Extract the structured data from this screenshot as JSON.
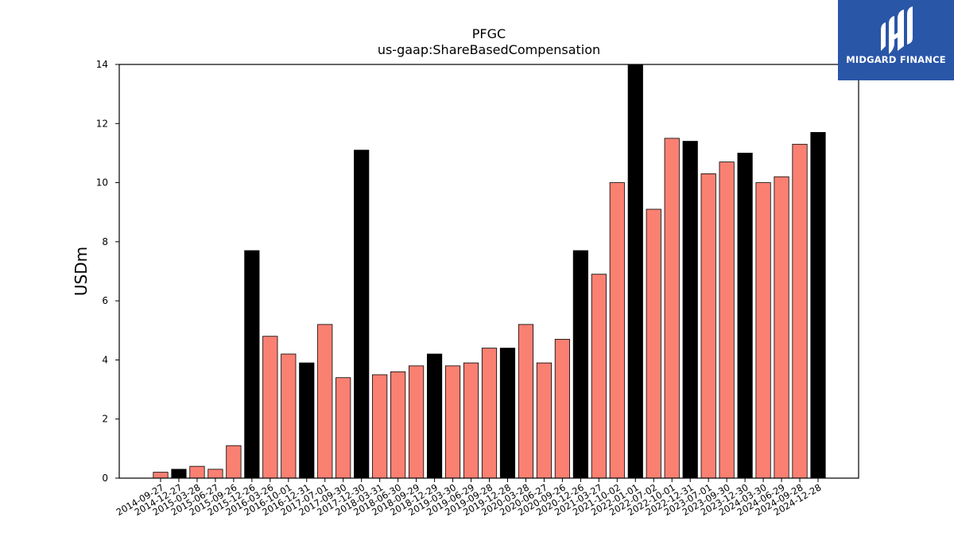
{
  "chart_data": {
    "type": "bar",
    "title": "PFGC",
    "subtitle": "us-gaap:ShareBasedCompensation",
    "xlabel": "",
    "ylabel": "USDm",
    "ylim": [
      0,
      14
    ],
    "yticks": [
      0,
      2,
      4,
      6,
      8,
      10,
      12,
      14
    ],
    "grid": false,
    "colors": {
      "quarter": "#fa8072",
      "fiscal_year_end": "#000000",
      "edge": "#000000"
    },
    "categories": [
      "2014-09-27",
      "2014-12-27",
      "2015-03-28",
      "2015-06-27",
      "2015-09-26",
      "2015-12-26",
      "2016-03-26",
      "2016-10-01",
      "2016-12-31",
      "2017-07-01",
      "2017-09-30",
      "2017-12-30",
      "2018-03-31",
      "2018-06-30",
      "2018-09-29",
      "2018-12-29",
      "2019-03-30",
      "2019-06-29",
      "2019-09-28",
      "2019-12-28",
      "2020-03-28",
      "2020-06-27",
      "2020-09-26",
      "2020-12-26",
      "2021-03-27",
      "2021-10-02",
      "2022-01-01",
      "2022-07-02",
      "2022-10-01",
      "2022-12-31",
      "2023-07-01",
      "2023-09-30",
      "2023-12-30",
      "2024-03-30",
      "2024-06-29",
      "2024-09-28",
      "2024-12-28"
    ],
    "values": [
      0.2,
      0.3,
      0.4,
      0.3,
      1.1,
      7.7,
      4.8,
      4.2,
      3.9,
      5.2,
      3.4,
      11.1,
      3.5,
      3.6,
      3.8,
      4.2,
      3.8,
      3.9,
      4.4,
      4.4,
      5.2,
      3.9,
      4.7,
      7.7,
      6.9,
      10.0,
      14.0,
      9.1,
      11.5,
      11.4,
      10.3,
      10.7,
      11.0,
      10.0,
      10.2,
      11.3,
      11.7
    ],
    "highlight": [
      false,
      true,
      false,
      false,
      false,
      true,
      false,
      false,
      true,
      false,
      false,
      true,
      false,
      false,
      false,
      true,
      false,
      false,
      false,
      true,
      false,
      false,
      false,
      true,
      false,
      false,
      true,
      false,
      false,
      true,
      false,
      false,
      true,
      false,
      false,
      false,
      true
    ]
  },
  "logo": {
    "text": "MIDGARD FINANCE",
    "color": "#2a56a8"
  }
}
